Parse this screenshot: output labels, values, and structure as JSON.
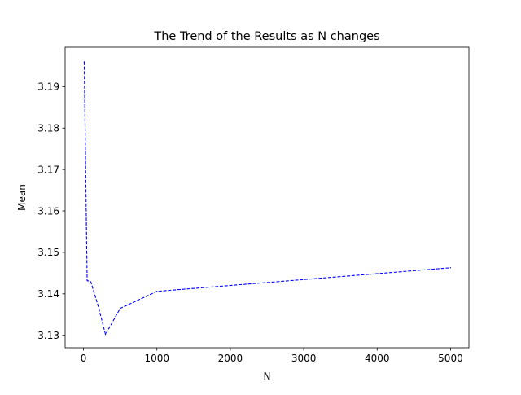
{
  "chart_data": {
    "type": "line",
    "title": "The Trend of the Results as N changes",
    "xlabel": "N",
    "ylabel": "Mean",
    "xlim": [
      -250,
      5250
    ],
    "ylim": [
      3.127,
      3.1995
    ],
    "xticks": [
      0,
      1000,
      2000,
      3000,
      4000,
      5000
    ],
    "yticks": [
      3.13,
      3.14,
      3.15,
      3.16,
      3.17,
      3.18,
      3.19
    ],
    "ytick_labels": [
      "3.13",
      "3.14",
      "3.15",
      "3.16",
      "3.17",
      "3.18",
      "3.19"
    ],
    "grid": false,
    "legend": "none",
    "series": [
      {
        "line_style": "dashed",
        "color": "#0000ff",
        "x": [
          10,
          50,
          100,
          200,
          300,
          500,
          1000,
          5000
        ],
        "y": [
          3.196,
          3.1432,
          3.1429,
          3.1371,
          3.1302,
          3.1365,
          3.1406,
          3.1463
        ]
      }
    ]
  }
}
